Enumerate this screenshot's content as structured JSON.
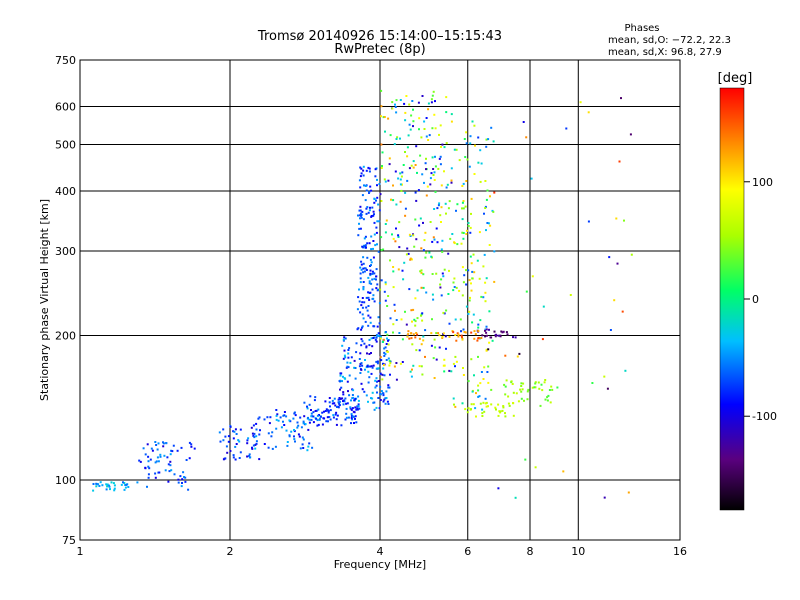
{
  "chart_data": {
    "type": "scatter",
    "title": "Tromsø 20140926 15:14:00–15:15:43",
    "subtitle": "RwPretec (8p)",
    "xlabel": "Frequency [MHz]",
    "ylabel": "Stationary phase Virtual Height [km]",
    "x_scale": "log",
    "y_scale": "log",
    "xlim": [
      1,
      16
    ],
    "ylim": [
      75,
      750
    ],
    "x_ticks": [
      1,
      2,
      4,
      6,
      8,
      10,
      16
    ],
    "y_ticks": [
      75,
      100,
      200,
      300,
      400,
      500,
      600,
      750
    ],
    "grid": true,
    "phases_header": "Phases",
    "stats": [
      "mean, sd,O: −72.2, 22.3",
      "mean, sd,X:  96.8, 27.9"
    ],
    "colorbar": {
      "label": "[deg]",
      "range": [
        -180,
        180
      ],
      "ticks": [
        100,
        0,
        -100
      ],
      "colormap": "rainbow"
    },
    "colors": {
      "low": "#000000",
      "mid_low": "#0000ff",
      "mid": "#00ff00",
      "mid_high": "#ffff00",
      "high": "#ff0000"
    },
    "clusters": [
      {
        "f": [
          1.05,
          1.25
        ],
        "h": [
          95,
          99
        ],
        "phase": [
          -60,
          -20
        ],
        "n": 30
      },
      {
        "f": [
          1.3,
          1.7
        ],
        "h": [
          95,
          120
        ],
        "phase": [
          -110,
          -40
        ],
        "n": 70
      },
      {
        "f": [
          1.9,
          2.3
        ],
        "h": [
          110,
          130
        ],
        "phase": [
          -110,
          -40
        ],
        "n": 50
      },
      {
        "f": [
          2.2,
          3.0
        ],
        "h": [
          115,
          140
        ],
        "phase": [
          -100,
          -30
        ],
        "n": 80
      },
      {
        "f": [
          2.8,
          3.6
        ],
        "h": [
          130,
          150
        ],
        "phase": [
          -100,
          -40
        ],
        "n": 100
      },
      {
        "f": [
          3.3,
          4.2
        ],
        "h": [
          140,
          200
        ],
        "phase": [
          -110,
          -30
        ],
        "n": 180
      },
      {
        "f": [
          3.6,
          4.0
        ],
        "h": [
          200,
          450
        ],
        "phase": [
          -100,
          -40
        ],
        "n": 180
      },
      {
        "f": [
          4.0,
          5.6
        ],
        "h": [
          160,
          650
        ],
        "phase": [
          -120,
          140
        ],
        "n": 320
      },
      {
        "f": [
          5.6,
          6.8
        ],
        "h": [
          140,
          560
        ],
        "phase": [
          -80,
          120
        ],
        "n": 160
      },
      {
        "f": [
          6.2,
          7.5
        ],
        "h": [
          198,
          206
        ],
        "phase": [
          -150,
          -120
        ],
        "n": 25
      },
      {
        "f": [
          7.0,
          9.2
        ],
        "h": [
          140,
          162
        ],
        "phase": [
          20,
          70
        ],
        "n": 45
      },
      {
        "f": [
          5.8,
          7.5
        ],
        "h": [
          135,
          145
        ],
        "phase": [
          50,
          80
        ],
        "n": 30
      },
      {
        "f": [
          4.5,
          6.5
        ],
        "h": [
          195,
          205
        ],
        "phase": [
          100,
          160
        ],
        "n": 40
      },
      {
        "f": [
          6.5,
          13.0
        ],
        "h": [
          90,
          650
        ],
        "phase": [
          -170,
          170
        ],
        "n": 40
      }
    ]
  }
}
